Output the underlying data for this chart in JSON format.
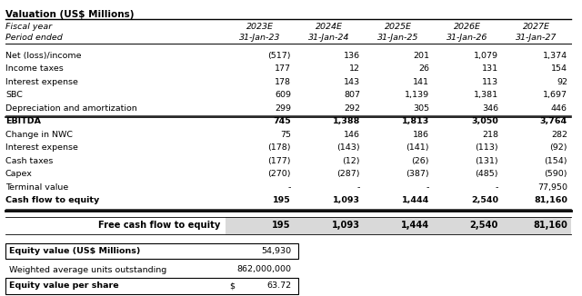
{
  "title": "Valuation (US$ Millions)",
  "header_row1": [
    "Fiscal year",
    "2023E",
    "2024E",
    "2025E",
    "2026E",
    "2027E"
  ],
  "header_row2": [
    "Period ended",
    "31-Jan-23",
    "31-Jan-24",
    "31-Jan-25",
    "31-Jan-26",
    "31-Jan-27"
  ],
  "rows": [
    [
      "Net (loss)/income",
      "(517)",
      "136",
      "201",
      "1,079",
      "1,374"
    ],
    [
      "Income taxes",
      "177",
      "12",
      "26",
      "131",
      "154"
    ],
    [
      "Interest expense",
      "178",
      "143",
      "141",
      "113",
      "92"
    ],
    [
      "SBC",
      "609",
      "807",
      "1,139",
      "1,381",
      "1,697"
    ],
    [
      "Depreciation and amortization",
      "299",
      "292",
      "305",
      "346",
      "446"
    ],
    [
      "EBITDA",
      "745",
      "1,388",
      "1,813",
      "3,050",
      "3,764"
    ],
    [
      "Change in NWC",
      "75",
      "146",
      "186",
      "218",
      "282"
    ],
    [
      "Interest expense",
      "(178)",
      "(143)",
      "(141)",
      "(113)",
      "(92)"
    ],
    [
      "Cash taxes",
      "(177)",
      "(12)",
      "(26)",
      "(131)",
      "(154)"
    ],
    [
      "Capex",
      "(270)",
      "(287)",
      "(387)",
      "(485)",
      "(590)"
    ],
    [
      "Terminal value",
      "-",
      "-",
      "-",
      "-",
      "77,950"
    ],
    [
      "Cash flow to equity",
      "195",
      "1,093",
      "1,444",
      "2,540",
      "81,160"
    ]
  ],
  "fcfe_row": [
    "Free cash flow to equity",
    "195",
    "1,093",
    "1,444",
    "2,540",
    "81,160"
  ],
  "equity_value_label": "Equity value (US$ Millions)",
  "equity_value": "54,930",
  "wauo_label": "Weighted average units outstanding",
  "wauo_value": "862,000,000",
  "evps_label": "Equity value per share",
  "evps_symbol": "$",
  "evps_value": "63.72",
  "bold_rows": [
    5,
    11
  ],
  "bg_color": "#ffffff",
  "fcfe_bg": "#d9d9d9",
  "font_size": 6.8,
  "title_font_size": 7.5
}
